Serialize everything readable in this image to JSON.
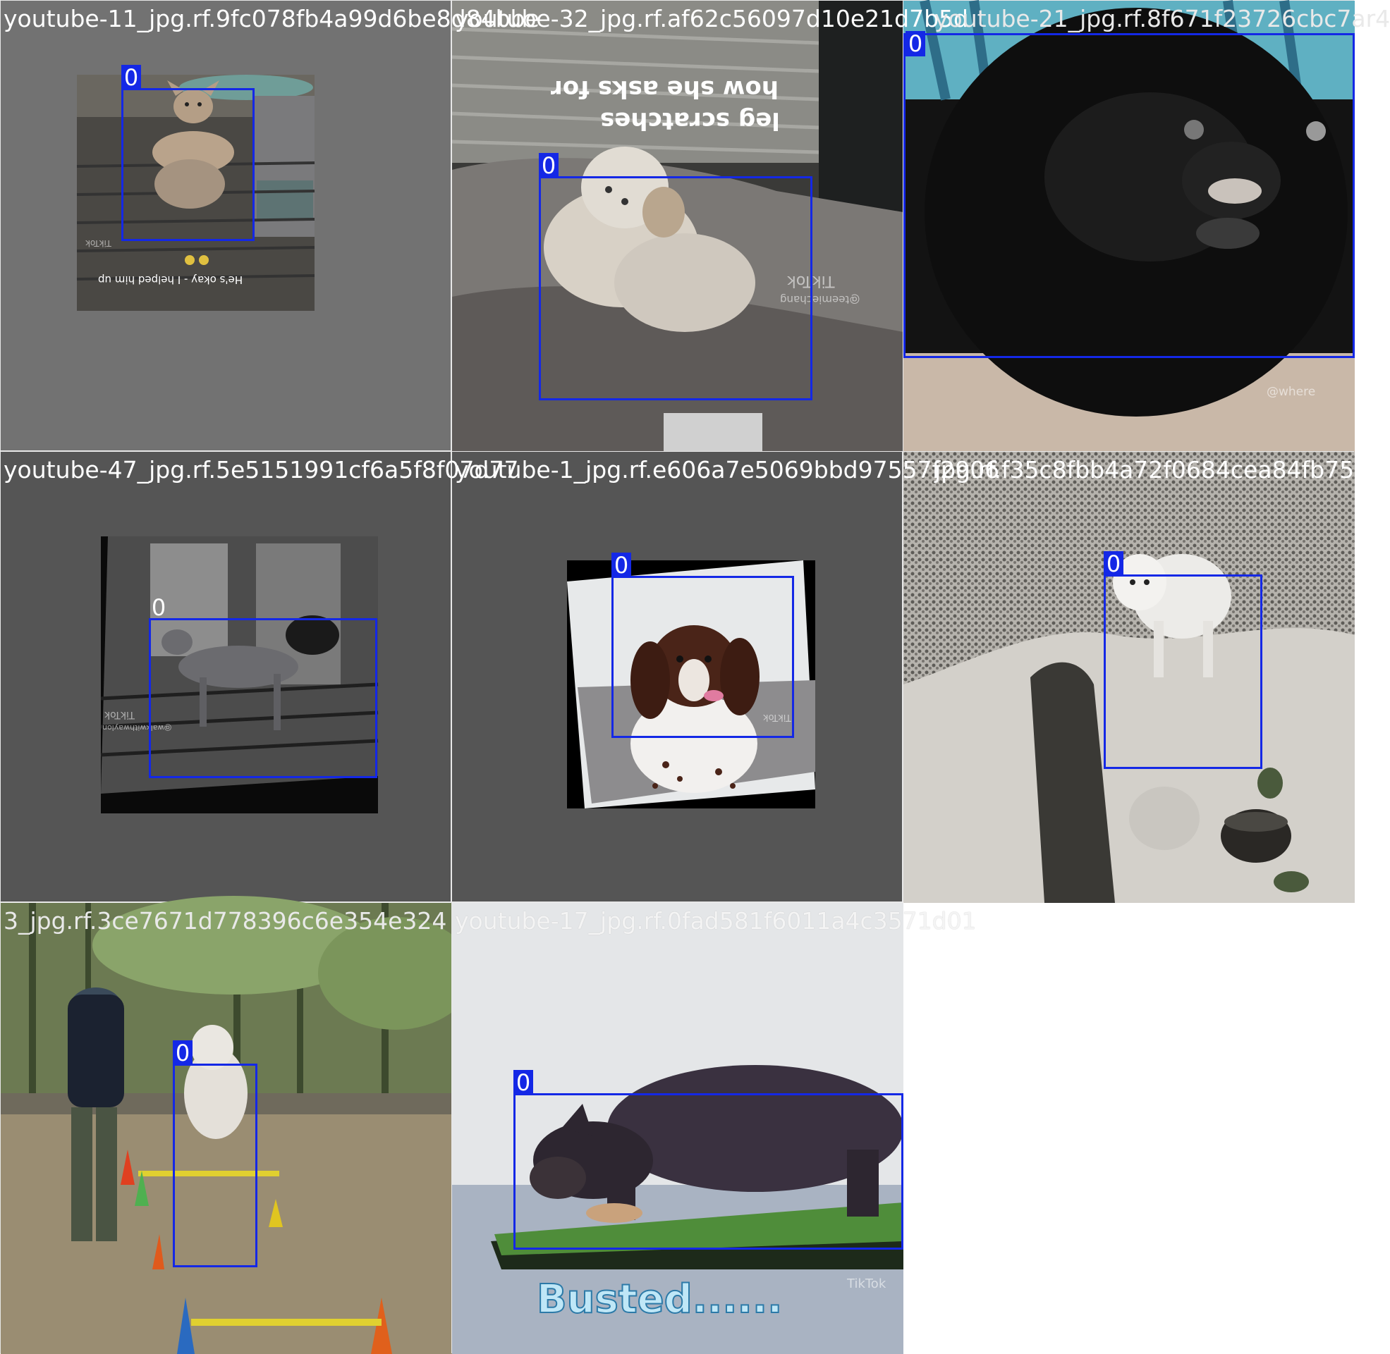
{
  "tiles": [
    {
      "name": "youtube-11_jpg.rf.9fc078fb4a99d6be8d84bbe",
      "label": "0",
      "caption": "He's okay - I helped him up",
      "watermark": "TikTok"
    },
    {
      "name": "youtube-32_jpg.rf.af62c56097d10e21d7b5d",
      "label": "0",
      "caption_line1": "how she asks for",
      "caption_line2": "leg scratches",
      "watermark": "TikTok",
      "handle": "@teemiechang"
    },
    {
      "name": "youtube-21_jpg.rf.8f671f23726cbc7ar4",
      "label": "0",
      "handle": "@where"
    },
    {
      "name": "youtube-47_jpg.rf.5e5151991cf6a5f8f07d77",
      "label": "0",
      "watermark": "TikTok",
      "handle": "@walkwithwaylon"
    },
    {
      "name": "youtube-1_jpg.rf.e606a7e5069bbd97557f2906",
      "label": "0",
      "watermark": "TikTok"
    },
    {
      "name": "jpg.rf.f35c8fbb4a72f0684cea84fb75",
      "label": "0"
    },
    {
      "name": "3_jpg.rf.3ce7671d778396c6e354e324",
      "label": "0"
    },
    {
      "name": "youtube-17_jpg.rf.0fad581f6011a4c3571d01",
      "label": "0",
      "caption": "Busted......",
      "watermark": "TikTok"
    }
  ],
  "colors": {
    "box": "#1428e6",
    "label_text": "#ffffff",
    "letterbox_gray": "#727272",
    "tile_name_light": "#ffffff",
    "tile_name_dark": "#e9e9e9"
  }
}
